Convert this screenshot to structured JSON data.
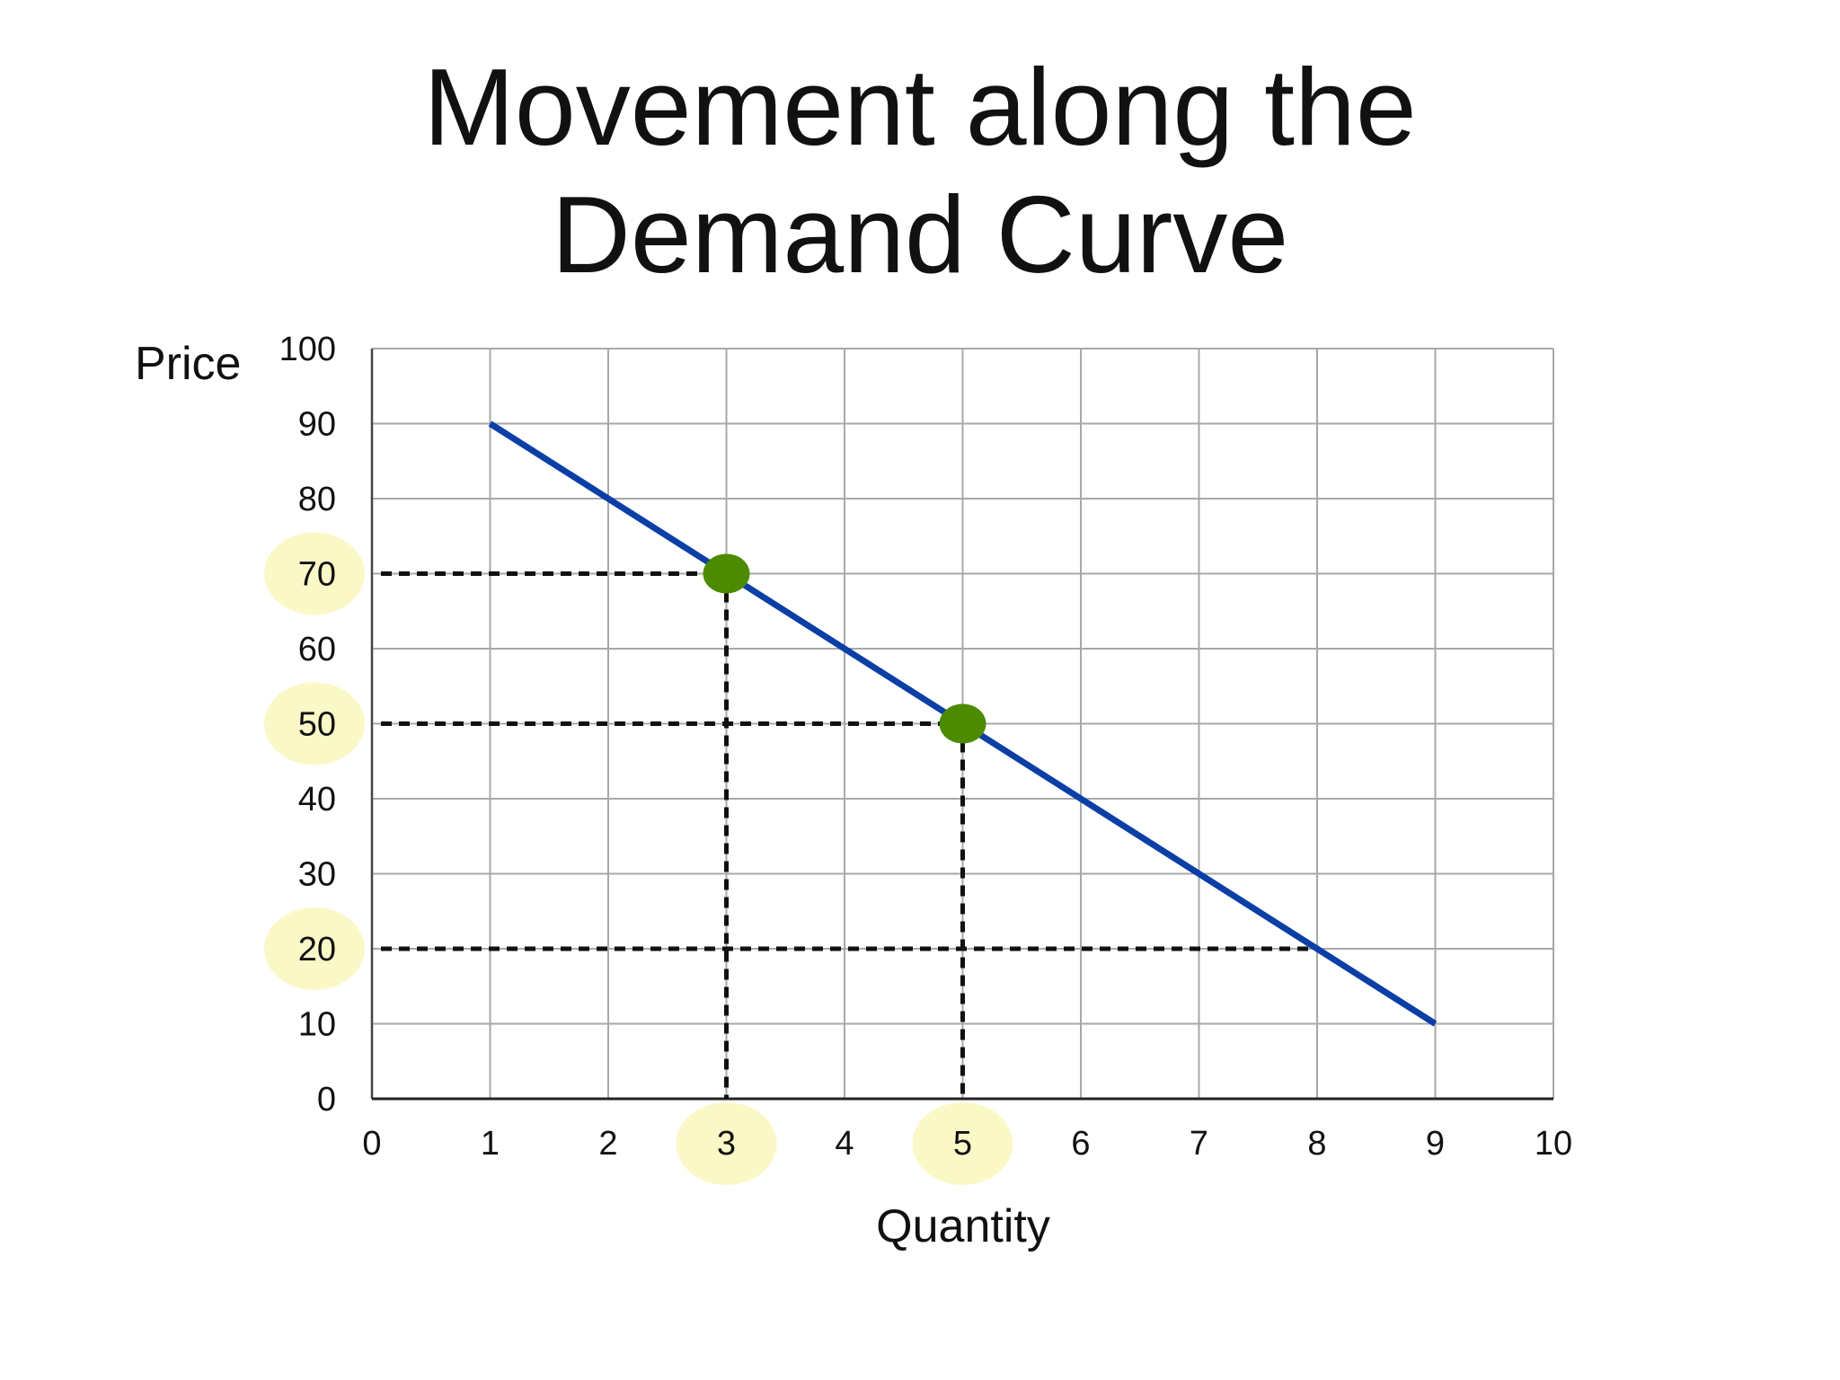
{
  "slide": {
    "title_line1": "Movement along the",
    "title_line2": "Demand Curve"
  },
  "chart_data": {
    "type": "line",
    "xlabel": "Quantity",
    "ylabel": "Price",
    "xlim": [
      0,
      10
    ],
    "ylim": [
      0,
      100
    ],
    "x_ticks": [
      "0",
      "1",
      "2",
      "3",
      "4",
      "5",
      "6",
      "7",
      "8",
      "9",
      "10"
    ],
    "y_ticks": [
      "0",
      "10",
      "20",
      "30",
      "40",
      "50",
      "60",
      "70",
      "80",
      "90",
      "100"
    ],
    "grid": true,
    "series": [
      {
        "x": [
          1,
          9
        ],
        "y": [
          90,
          10
        ],
        "color": "#0b3fa6"
      }
    ],
    "points": [
      {
        "x": 3,
        "y": 70,
        "color": "#4c8a00"
      },
      {
        "x": 5,
        "y": 50,
        "color": "#4c8a00"
      }
    ],
    "guides": [
      {
        "type": "horizontal",
        "y": 70,
        "x_to": 3
      },
      {
        "type": "horizontal",
        "y": 50,
        "x_to": 5
      },
      {
        "type": "horizontal",
        "y": 20,
        "x_to": 8
      },
      {
        "type": "vertical",
        "x": 3,
        "y_to": 70
      },
      {
        "type": "vertical",
        "x": 5,
        "y_to": 50
      }
    ],
    "highlighted_y_ticks": [
      "20",
      "50",
      "70"
    ],
    "highlighted_x_ticks": [
      "3",
      "5"
    ],
    "highlight_color": "#fbf8c8"
  }
}
